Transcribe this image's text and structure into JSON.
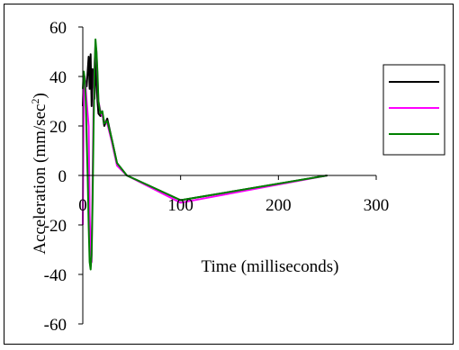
{
  "chart_data": {
    "type": "line",
    "xlabel": "Time (milliseconds)",
    "ylabel_main": "Acceleration (mm/sec",
    "ylabel_sup": "2",
    "ylabel_close": ")",
    "xlim": [
      0,
      300
    ],
    "ylim": [
      -60,
      60
    ],
    "xticks": [
      0,
      100,
      200,
      300
    ],
    "yticks": [
      60,
      40,
      20,
      0,
      -20,
      -40,
      -60
    ],
    "xtick_labels": [
      "0",
      "100",
      "200",
      "300"
    ],
    "ytick_labels": [
      "60",
      "40",
      "20",
      "0",
      "-20",
      "-40",
      "-60"
    ],
    "grid": false,
    "legend_position": "right",
    "series": [
      {
        "color": "#000000",
        "points": [
          [
            0,
            28
          ],
          [
            1,
            40
          ],
          [
            2,
            34
          ],
          [
            3,
            38
          ],
          [
            4,
            36
          ],
          [
            5,
            42
          ],
          [
            6,
            48
          ],
          [
            7,
            35
          ],
          [
            8,
            49
          ],
          [
            9,
            28
          ],
          [
            10,
            43
          ],
          [
            11,
            38
          ],
          [
            12,
            31
          ],
          [
            13,
            47
          ],
          [
            14,
            38
          ],
          [
            15,
            30
          ],
          [
            16,
            25
          ],
          [
            18,
            24
          ],
          [
            20,
            25
          ],
          [
            22,
            20
          ],
          [
            25,
            23
          ],
          [
            30,
            14
          ],
          [
            35,
            5
          ],
          [
            45,
            0
          ],
          [
            100,
            -10
          ],
          [
            250,
            0
          ]
        ]
      },
      {
        "color": "#ff00ff",
        "points": [
          [
            0,
            -20
          ],
          [
            1,
            36
          ],
          [
            2,
            40
          ],
          [
            3,
            35
          ],
          [
            4,
            30
          ],
          [
            5,
            25
          ],
          [
            6,
            20
          ],
          [
            7,
            -15
          ],
          [
            8,
            -30
          ],
          [
            9,
            -35
          ],
          [
            10,
            0
          ],
          [
            11,
            30
          ],
          [
            12,
            45
          ],
          [
            13,
            53
          ],
          [
            14,
            50
          ],
          [
            15,
            40
          ],
          [
            16,
            30
          ],
          [
            18,
            26
          ],
          [
            20,
            24
          ],
          [
            22,
            22
          ],
          [
            25,
            21
          ],
          [
            30,
            13
          ],
          [
            35,
            4
          ],
          [
            45,
            0
          ],
          [
            100,
            -11
          ],
          [
            250,
            0
          ]
        ]
      },
      {
        "color": "#008000",
        "points": [
          [
            0,
            35
          ],
          [
            1,
            42
          ],
          [
            2,
            39
          ],
          [
            3,
            30
          ],
          [
            4,
            15
          ],
          [
            5,
            0
          ],
          [
            6,
            -20
          ],
          [
            7,
            -35
          ],
          [
            8,
            -38
          ],
          [
            9,
            -32
          ],
          [
            10,
            -10
          ],
          [
            11,
            20
          ],
          [
            12,
            42
          ],
          [
            13,
            55
          ],
          [
            14,
            50
          ],
          [
            15,
            42
          ],
          [
            16,
            30
          ],
          [
            18,
            25
          ],
          [
            20,
            26
          ],
          [
            22,
            21
          ],
          [
            25,
            22
          ],
          [
            30,
            14
          ],
          [
            35,
            5
          ],
          [
            45,
            0
          ],
          [
            100,
            -10
          ],
          [
            250,
            0
          ]
        ]
      }
    ]
  }
}
